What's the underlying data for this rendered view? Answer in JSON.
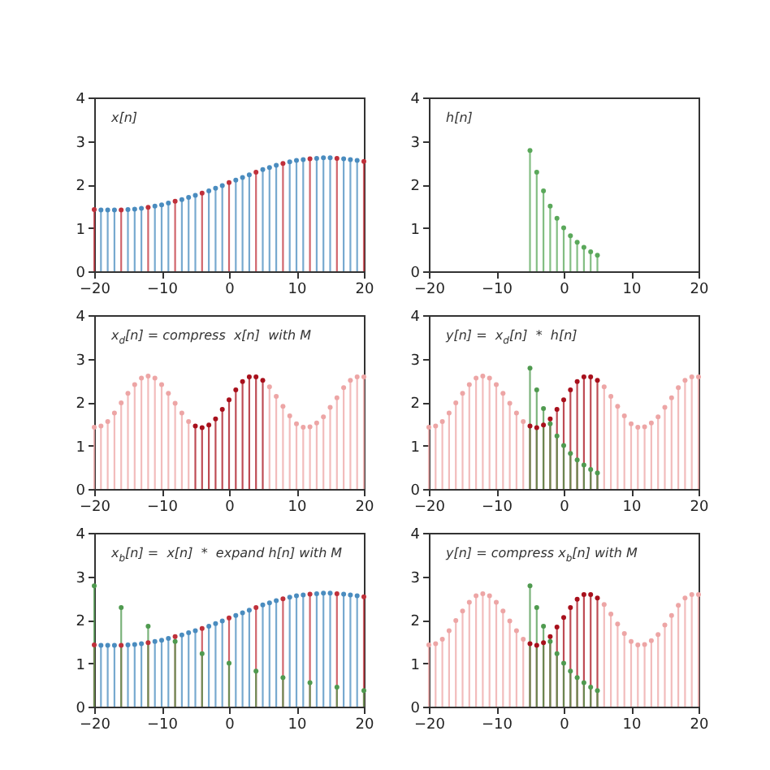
{
  "chart_data": [
    {
      "type": "lollipop",
      "annotations": [
        "x[n]"
      ],
      "xlim": [
        -20,
        20
      ],
      "xticks": [
        -20,
        -10,
        0,
        10,
        20
      ],
      "ylim": [
        0,
        4
      ],
      "yticks": [
        0,
        1,
        2,
        3,
        4
      ],
      "marker": "circle",
      "series": [
        {
          "color": "#4a8cbf",
          "x": [
            -19,
            -18,
            -17,
            -15,
            -14,
            -13,
            -11,
            -10,
            -9,
            -7,
            -6,
            -5,
            -3,
            -2,
            -1,
            1,
            2,
            3,
            5,
            6,
            7,
            9,
            10,
            11,
            13,
            14,
            15,
            17,
            18,
            19
          ],
          "values": [
            1.41,
            1.41,
            1.41,
            1.42,
            1.43,
            1.45,
            1.5,
            1.53,
            1.57,
            1.65,
            1.7,
            1.75,
            1.85,
            1.91,
            1.97,
            2.1,
            2.16,
            2.22,
            2.34,
            2.39,
            2.44,
            2.52,
            2.55,
            2.57,
            2.6,
            2.61,
            2.61,
            2.59,
            2.57,
            2.55
          ]
        },
        {
          "color": "#c0303a",
          "x": [
            -20,
            -16,
            -12,
            -8,
            -4,
            0,
            4,
            8,
            12,
            16,
            20
          ],
          "values": [
            1.42,
            1.41,
            1.47,
            1.61,
            1.8,
            2.04,
            2.28,
            2.48,
            2.59,
            2.6,
            2.53
          ]
        }
      ]
    },
    {
      "type": "lollipop",
      "annotations": [
        "h[n]"
      ],
      "xlim": [
        -20,
        20
      ],
      "xticks": [
        -20,
        -10,
        0,
        10,
        20
      ],
      "ylim": [
        0,
        4
      ],
      "yticks": [
        0,
        1,
        2,
        3,
        4
      ],
      "marker": "circle",
      "series": [
        {
          "color": "#5aa85a",
          "x": [
            -5,
            -4,
            -3,
            -2,
            -1,
            0,
            1,
            2,
            3,
            4,
            5
          ],
          "values": [
            2.78,
            2.28,
            1.85,
            1.5,
            1.22,
            1.0,
            0.82,
            0.67,
            0.55,
            0.45,
            0.37
          ]
        }
      ]
    },
    {
      "type": "lollipop",
      "annotations": [
        "x$_{d}$[n] = compress  x[n]  with M"
      ],
      "xlim": [
        -20,
        20
      ],
      "xticks": [
        -20,
        -10,
        0,
        10,
        20
      ],
      "ylim": [
        0,
        4
      ],
      "yticks": [
        0,
        1,
        2,
        3,
        4
      ],
      "marker": "circle",
      "series": [
        {
          "color": "#eda5a5",
          "x": [
            -20,
            -19,
            -18,
            -17,
            -16,
            -15,
            -14,
            -13,
            -12,
            -11,
            -10,
            -9,
            -8,
            -7,
            -6,
            6,
            7,
            8,
            9,
            10,
            11,
            12,
            13,
            14,
            15,
            16,
            17,
            18,
            19,
            20
          ],
          "values": [
            1.42,
            1.45,
            1.55,
            1.75,
            1.98,
            2.2,
            2.4,
            2.55,
            2.6,
            2.55,
            2.4,
            2.2,
            1.97,
            1.75,
            1.55,
            2.35,
            2.13,
            1.9,
            1.68,
            1.5,
            1.42,
            1.43,
            1.52,
            1.66,
            1.88,
            2.1,
            2.33,
            2.5,
            2.58,
            2.58
          ]
        },
        {
          "color": "#a8101c",
          "x": [
            -5,
            -4,
            -3,
            -2,
            -1,
            0,
            1,
            2,
            3,
            4,
            5
          ],
          "values": [
            1.45,
            1.41,
            1.47,
            1.61,
            1.83,
            2.05,
            2.28,
            2.47,
            2.58,
            2.58,
            2.5
          ]
        }
      ]
    },
    {
      "type": "lollipop",
      "annotations": [
        "y[n] =  x$_{d}$[n]  *  h[n]"
      ],
      "xlim": [
        -20,
        20
      ],
      "xticks": [
        -20,
        -10,
        0,
        10,
        20
      ],
      "ylim": [
        0,
        4
      ],
      "yticks": [
        0,
        1,
        2,
        3,
        4
      ],
      "marker": "circle",
      "series": [
        {
          "color": "#eda5a5",
          "x": [
            -20,
            -19,
            -18,
            -17,
            -16,
            -15,
            -14,
            -13,
            -12,
            -11,
            -10,
            -9,
            -8,
            -7,
            -6,
            6,
            7,
            8,
            9,
            10,
            11,
            12,
            13,
            14,
            15,
            16,
            17,
            18,
            19,
            20
          ],
          "values": [
            1.42,
            1.45,
            1.55,
            1.75,
            1.98,
            2.2,
            2.4,
            2.55,
            2.6,
            2.55,
            2.4,
            2.2,
            1.97,
            1.75,
            1.55,
            2.35,
            2.13,
            1.9,
            1.68,
            1.5,
            1.42,
            1.43,
            1.52,
            1.66,
            1.88,
            2.1,
            2.33,
            2.5,
            2.58,
            2.58
          ]
        },
        {
          "color": "#a8101c",
          "x": [
            -5,
            -4,
            -3,
            -2,
            -1,
            0,
            1,
            2,
            3,
            4,
            5
          ],
          "values": [
            1.45,
            1.41,
            1.47,
            1.61,
            1.83,
            2.05,
            2.28,
            2.47,
            2.58,
            2.58,
            2.5
          ]
        },
        {
          "color": "#4f9a4f",
          "x": [
            -5,
            -4,
            -3,
            -2,
            -1,
            0,
            1,
            2,
            3,
            4,
            5
          ],
          "values": [
            2.78,
            2.28,
            1.85,
            1.5,
            1.22,
            1.0,
            0.82,
            0.67,
            0.55,
            0.45,
            0.37
          ]
        }
      ]
    },
    {
      "type": "lollipop",
      "annotations": [
        "x$_{b}$[n] =  x[n]  *  expand h[n] with M"
      ],
      "xlim": [
        -20,
        20
      ],
      "xticks": [
        -20,
        -10,
        0,
        10,
        20
      ],
      "ylim": [
        0,
        4
      ],
      "yticks": [
        0,
        1,
        2,
        3,
        4
      ],
      "marker": "circle",
      "series": [
        {
          "color": "#4a8cbf",
          "x": [
            -19,
            -18,
            -17,
            -15,
            -14,
            -13,
            -11,
            -10,
            -9,
            -7,
            -6,
            -5,
            -3,
            -2,
            -1,
            1,
            2,
            3,
            5,
            6,
            7,
            9,
            10,
            11,
            13,
            14,
            15,
            17,
            18,
            19
          ],
          "values": [
            1.41,
            1.41,
            1.41,
            1.42,
            1.43,
            1.45,
            1.5,
            1.53,
            1.57,
            1.65,
            1.7,
            1.75,
            1.85,
            1.91,
            1.97,
            2.1,
            2.16,
            2.22,
            2.34,
            2.39,
            2.44,
            2.52,
            2.55,
            2.57,
            2.6,
            2.61,
            2.61,
            2.59,
            2.57,
            2.55
          ]
        },
        {
          "color": "#c0303a",
          "x": [
            -20,
            -16,
            -12,
            -8,
            -4,
            0,
            4,
            8,
            12,
            16,
            20
          ],
          "values": [
            1.42,
            1.41,
            1.47,
            1.61,
            1.8,
            2.04,
            2.28,
            2.48,
            2.59,
            2.6,
            2.53
          ]
        },
        {
          "color": "#4f9a4f",
          "x": [
            -20,
            -16,
            -12,
            -8,
            -4,
            0,
            4,
            8,
            12,
            16,
            20
          ],
          "values": [
            2.78,
            2.28,
            1.85,
            1.5,
            1.22,
            1.0,
            0.82,
            0.67,
            0.55,
            0.45,
            0.37
          ]
        }
      ]
    },
    {
      "type": "lollipop",
      "annotations": [
        "y[n] = compress x$_{b}$[n] with M"
      ],
      "xlim": [
        -20,
        20
      ],
      "xticks": [
        -20,
        -10,
        0,
        10,
        20
      ],
      "ylim": [
        0,
        4
      ],
      "yticks": [
        0,
        1,
        2,
        3,
        4
      ],
      "marker": "circle",
      "series": [
        {
          "color": "#eda5a5",
          "x": [
            -20,
            -19,
            -18,
            -17,
            -16,
            -15,
            -14,
            -13,
            -12,
            -11,
            -10,
            -9,
            -8,
            -7,
            -6,
            6,
            7,
            8,
            9,
            10,
            11,
            12,
            13,
            14,
            15,
            16,
            17,
            18,
            19,
            20
          ],
          "values": [
            1.42,
            1.45,
            1.55,
            1.75,
            1.98,
            2.2,
            2.4,
            2.55,
            2.6,
            2.55,
            2.4,
            2.2,
            1.97,
            1.75,
            1.55,
            2.35,
            2.13,
            1.9,
            1.68,
            1.5,
            1.42,
            1.43,
            1.52,
            1.66,
            1.88,
            2.1,
            2.33,
            2.5,
            2.58,
            2.58
          ]
        },
        {
          "color": "#a8101c",
          "x": [
            -5,
            -4,
            -3,
            -2,
            -1,
            0,
            1,
            2,
            3,
            4,
            5
          ],
          "values": [
            1.45,
            1.41,
            1.47,
            1.61,
            1.83,
            2.05,
            2.28,
            2.47,
            2.58,
            2.58,
            2.5
          ]
        },
        {
          "color": "#4f9a4f",
          "x": [
            -5,
            -4,
            -3,
            -2,
            -1,
            0,
            1,
            2,
            3,
            4,
            5
          ],
          "values": [
            2.78,
            2.28,
            1.85,
            1.5,
            1.22,
            1.0,
            0.82,
            0.67,
            0.55,
            0.45,
            0.37
          ]
        }
      ]
    }
  ]
}
